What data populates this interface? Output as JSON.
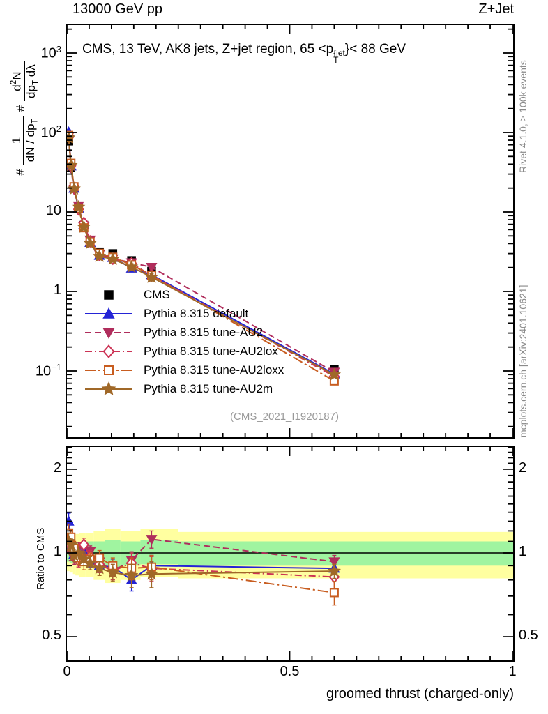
{
  "header": {
    "left": "13000 GeV pp",
    "right": "Z+Jet"
  },
  "panel_title": {
    "pre": "CMS, 13 TeV, AK8 jets, Z+jet region, 65 <p",
    "sup": "{jet",
    "sub": "T",
    "post": "}< 88 GeV"
  },
  "watermark": "(CMS_2021_I1920187)",
  "side_captions": {
    "top": "Rivet 4.1.0, ≥ 100k events",
    "bottom": "mcplots.cern.ch [arXiv:2401.10621]"
  },
  "axis_titles": {
    "x": "groomed thrust (charged-only)",
    "ratio_y": "Ratio to CMS",
    "main_y": {
      "hash": "#",
      "num1": "1",
      "den1_pre": "dN / dp",
      "den1_sub": "T",
      "num2_pre": "d",
      "num2_sup": "2",
      "num2_post": "N",
      "den2_pre": "dp",
      "den2_sub": "T",
      "den2_post": " dλ"
    }
  },
  "chart_data": {
    "type": "line",
    "title": "CMS, 13 TeV, AK8 jets, Z+jet region, 65 < pT{jet} < 88 GeV",
    "xlabel": "groomed thrust (charged-only)",
    "ylabel": "#1/(dN/dpT) #d2N/(dpT dlambda)",
    "x": [
      0.004,
      0.009,
      0.016,
      0.026,
      0.038,
      0.052,
      0.073,
      0.103,
      0.145,
      0.19,
      0.6
    ],
    "xlim": [
      0,
      1.003
    ],
    "x_ticks": [
      {
        "v": 0,
        "label": "0"
      },
      {
        "v": 0.5,
        "label": "0.5"
      },
      {
        "v": 1,
        "label": "1"
      }
    ],
    "x_minor_step": 0.05,
    "main_axis": {
      "ylog": true,
      "ylim": [
        0.0146,
        2280
      ],
      "y_ticks": [
        {
          "v": 1000,
          "mant": "10",
          "exp": "3"
        },
        {
          "v": 100,
          "mant": "10",
          "exp": "2"
        },
        {
          "v": 10,
          "mant": "10",
          "exp": ""
        },
        {
          "v": 1,
          "mant": "1",
          "exp": ""
        },
        {
          "v": 0.1,
          "mant": "10",
          "exp": "−1"
        }
      ]
    },
    "ratio_axis": {
      "ylog": true,
      "ylim": [
        0.41,
        2.42
      ],
      "ref_line": 1,
      "y_ticks": [
        {
          "v": 2,
          "label": "2"
        },
        {
          "v": 1,
          "label": "1"
        },
        {
          "v": 0.5,
          "label": "0.5"
        }
      ],
      "bands": {
        "yellow_color": "#ffffa0",
        "green_color": "#a0f4a0",
        "edges": [
          0,
          0.006,
          0.012,
          0.019,
          0.028,
          0.042,
          0.06,
          0.085,
          0.12,
          0.165,
          0.25,
          1.003
        ],
        "yellow": [
          [
            0.86,
            1.14
          ],
          [
            0.85,
            1.15
          ],
          [
            0.84,
            1.16
          ],
          [
            0.83,
            1.17
          ],
          [
            0.82,
            1.18
          ],
          [
            0.82,
            1.18
          ],
          [
            0.8,
            1.2
          ],
          [
            0.78,
            1.22
          ],
          [
            0.8,
            1.2
          ],
          [
            0.82,
            1.22
          ],
          [
            0.81,
            1.19
          ]
        ],
        "green": [
          [
            0.93,
            1.07
          ],
          [
            0.92,
            1.08
          ],
          [
            0.92,
            1.08
          ],
          [
            0.91,
            1.09
          ],
          [
            0.91,
            1.09
          ],
          [
            0.9,
            1.1
          ],
          [
            0.9,
            1.1
          ],
          [
            0.89,
            1.11
          ],
          [
            0.9,
            1.1
          ],
          [
            0.91,
            1.11
          ],
          [
            0.9,
            1.1
          ]
        ]
      }
    },
    "series": [
      {
        "name": "CMS",
        "color": "#000000",
        "marker": "square",
        "fill": true,
        "line": "none",
        "values": [
          78,
          36,
          20,
          11.5,
          6.8,
          4.4,
          3.15,
          3.0,
          2.45,
          1.8,
          0.104
        ],
        "errors": [
          6,
          3,
          1.6,
          0.9,
          0.5,
          0.35,
          0.25,
          0.22,
          0.18,
          0.15,
          0.012
        ]
      },
      {
        "name": "Pythia 8.315 default",
        "color": "#2424d6",
        "marker": "triangle-up",
        "fill": true,
        "line": "solid",
        "ratio": [
          1.3,
          1.05,
          0.99,
          0.97,
          1.02,
          0.94,
          0.9,
          0.89,
          0.8,
          0.9,
          0.88
        ],
        "ratio_err": [
          0.09,
          0.06,
          0.05,
          0.05,
          0.05,
          0.05,
          0.05,
          0.06,
          0.07,
          0.08,
          0.05
        ]
      },
      {
        "name": "Pythia 8.315 tune-AU2",
        "color": "#b02d5c",
        "marker": "triangle-down",
        "fill": true,
        "line": "dashed",
        "ratio": [
          1.14,
          1.0,
          0.96,
          1.04,
          0.96,
          1.01,
          0.93,
          0.86,
          0.94,
          1.12,
          0.93
        ],
        "ratio_err": [
          0.08,
          0.06,
          0.05,
          0.05,
          0.05,
          0.05,
          0.05,
          0.06,
          0.07,
          0.08,
          0.05
        ]
      },
      {
        "name": "Pythia 8.315 tune-AU2lox",
        "color": "#cc3355",
        "marker": "diamond",
        "fill": false,
        "line": "dashdot",
        "ratio": [
          1.12,
          1.06,
          1.0,
          0.94,
          1.07,
          0.97,
          0.91,
          0.86,
          0.92,
          0.88,
          0.82
        ],
        "ratio_err": [
          0.09,
          0.07,
          0.06,
          0.05,
          0.06,
          0.05,
          0.06,
          0.06,
          0.08,
          0.09,
          0.09
        ]
      },
      {
        "name": "Pythia 8.315 tune-AU2loxx",
        "color": "#c85d20",
        "marker": "square",
        "fill": false,
        "line": "dashdot2",
        "ratio": [
          1.18,
          1.14,
          1.04,
          0.96,
          0.93,
          0.95,
          0.96,
          0.9,
          0.88,
          0.89,
          0.72
        ],
        "ratio_err": [
          0.09,
          0.07,
          0.06,
          0.05,
          0.06,
          0.05,
          0.06,
          0.06,
          0.08,
          0.09,
          0.07
        ]
      },
      {
        "name": "Pythia 8.315 tune-AU2m",
        "color": "#a06828",
        "marker": "star",
        "fill": true,
        "line": "solid",
        "ratio": [
          1.1,
          1.07,
          0.98,
          1.0,
          0.95,
          0.92,
          0.88,
          0.85,
          0.83,
          0.84,
          0.86
        ],
        "ratio_err": [
          0.08,
          0.06,
          0.05,
          0.05,
          0.05,
          0.05,
          0.05,
          0.06,
          0.08,
          0.09,
          0.05
        ]
      }
    ],
    "legend_position": "middle-left"
  }
}
